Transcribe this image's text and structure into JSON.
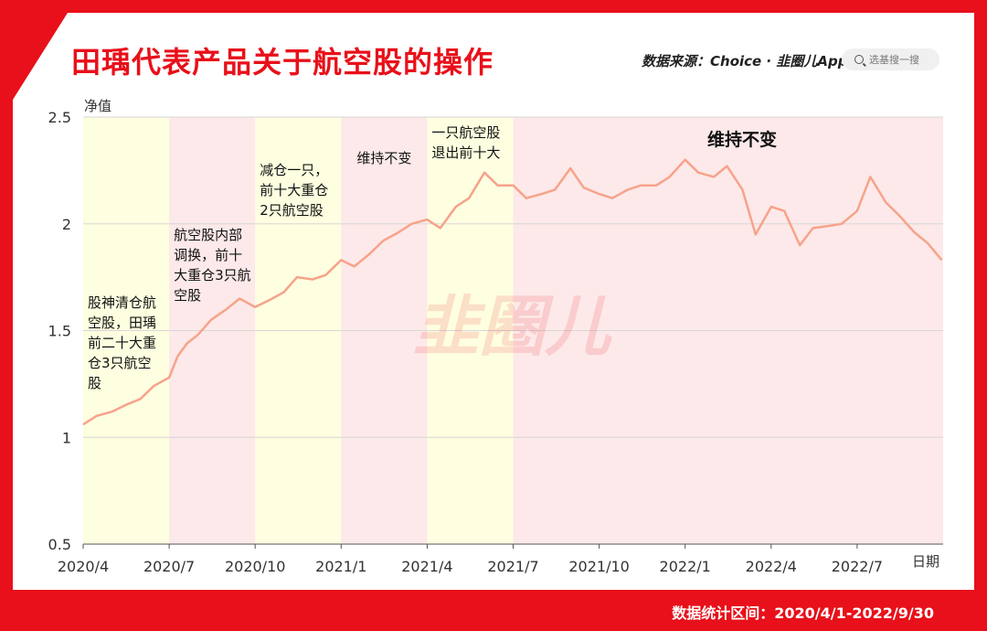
{
  "header": {
    "title": "田瑀代表产品关于航空股的操作",
    "source_label": "数据来源：Choice · 韭圈儿App",
    "search_placeholder": "选基搜一搜"
  },
  "footer": {
    "period": "数据统计区间：2020/4/1-2022/9/30"
  },
  "watermark": "韭圈儿",
  "colors": {
    "brand": "#e8101a",
    "line": "#f6a38a",
    "band_yellow": "#fefee0",
    "band_pink": "#fde9e9"
  },
  "chart_data": {
    "type": "line",
    "title": "",
    "xlabel": "日期",
    "ylabel": "净值",
    "ylim": [
      0.5,
      2.5
    ],
    "yticks": [
      "0.5",
      "1",
      "1.5",
      "2",
      "2.5"
    ],
    "xticks": [
      "2020/4",
      "2020/7",
      "2020/10",
      "2021/1",
      "2021/4",
      "2021/7",
      "2021/10",
      "2022/1",
      "2022/4",
      "2022/7"
    ],
    "grid": "horizontal",
    "series": [
      {
        "name": "",
        "x": [
          "2020/4/1",
          "2020/4/15",
          "2020/5/1",
          "2020/5/15",
          "2020/6/1",
          "2020/6/15",
          "2020/7/1",
          "2020/7/10",
          "2020/7/20",
          "2020/8/1",
          "2020/8/15",
          "2020/9/1",
          "2020/9/15",
          "2020/10/1",
          "2020/10/15",
          "2020/11/1",
          "2020/11/15",
          "2020/12/1",
          "2020/12/15",
          "2021/1/1",
          "2021/1/15",
          "2021/2/1",
          "2021/2/15",
          "2021/3/1",
          "2021/3/15",
          "2021/4/1",
          "2021/4/15",
          "2021/5/1",
          "2021/5/15",
          "2021/6/1",
          "2021/6/15",
          "2021/7/1",
          "2021/7/15",
          "2021/8/1",
          "2021/8/15",
          "2021/9/1",
          "2021/9/15",
          "2021/10/1",
          "2021/10/15",
          "2021/11/1",
          "2021/11/15",
          "2021/12/1",
          "2021/12/15",
          "2022/1/1",
          "2022/1/15",
          "2022/2/1",
          "2022/2/15",
          "2022/3/1",
          "2022/3/15",
          "2022/4/1",
          "2022/4/15",
          "2022/5/1",
          "2022/5/15",
          "2022/6/1",
          "2022/6/15",
          "2022/7/1",
          "2022/7/15",
          "2022/8/1",
          "2022/8/15",
          "2022/9/1",
          "2022/9/15",
          "2022/9/30"
        ],
        "values": [
          1.06,
          1.1,
          1.12,
          1.15,
          1.18,
          1.24,
          1.28,
          1.38,
          1.44,
          1.48,
          1.55,
          1.6,
          1.65,
          1.61,
          1.64,
          1.68,
          1.75,
          1.74,
          1.76,
          1.83,
          1.8,
          1.86,
          1.92,
          1.96,
          2.0,
          2.02,
          1.98,
          2.08,
          2.12,
          2.24,
          2.18,
          2.18,
          2.12,
          2.14,
          2.16,
          2.26,
          2.17,
          2.14,
          2.12,
          2.16,
          2.18,
          2.18,
          2.22,
          2.3,
          2.24,
          2.22,
          2.27,
          2.16,
          1.95,
          2.08,
          2.06,
          1.9,
          1.98,
          1.99,
          2.0,
          2.06,
          2.22,
          2.1,
          2.04,
          1.96,
          1.91,
          1.83
        ]
      }
    ],
    "bands": [
      {
        "from": "2020/4",
        "to": "2020/7",
        "color": "yellow",
        "note": "股神清仓航空股，田瑀前二十大重仓3只航空股"
      },
      {
        "from": "2020/7",
        "to": "2020/10",
        "color": "pink",
        "note": "航空股内部调换，前十大重仓3只航空股"
      },
      {
        "from": "2020/10",
        "to": "2021/1",
        "color": "yellow",
        "note": "减仓一只，前十大重仓2只航空股"
      },
      {
        "from": "2021/1",
        "to": "2021/4",
        "color": "pink",
        "note": "维持不变"
      },
      {
        "from": "2021/4",
        "to": "2021/7",
        "color": "yellow",
        "note": "一只航空股退出前十大"
      },
      {
        "from": "2021/7",
        "to": "2022/10",
        "color": "pink",
        "note": "维持不变"
      }
    ]
  }
}
